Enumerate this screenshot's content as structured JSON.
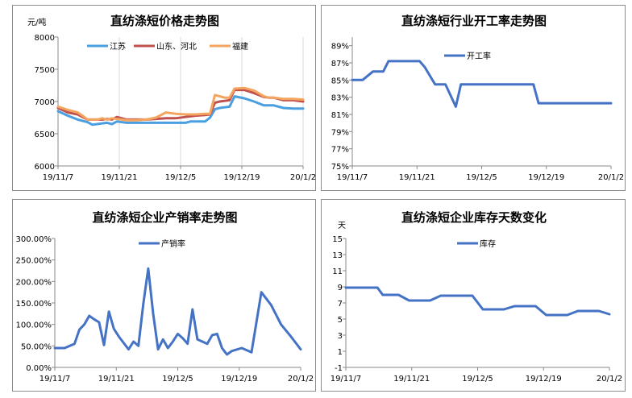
{
  "chart_data": [
    {
      "type": "line",
      "title": "直纺涤短价格走势图",
      "ylabel": "元/吨",
      "ylim": [
        6000,
        8000
      ],
      "yticks": [
        "8000",
        "7500",
        "7000",
        "6500",
        "6000"
      ],
      "xticks": [
        "19/11/7",
        "19/11/21",
        "19/12/5",
        "19/12/19",
        "20/1/2"
      ],
      "legend_position": "top",
      "series": [
        {
          "name": "江苏",
          "color": "#4a9fe0",
          "x": [
            0,
            2,
            4,
            5,
            6,
            7,
            8,
            9,
            10,
            11,
            12,
            14,
            16,
            18,
            20,
            22,
            24,
            26,
            27,
            28,
            30,
            31,
            32,
            33,
            34,
            35,
            36,
            38,
            40,
            42,
            43,
            44,
            46,
            48,
            50
          ],
          "y": [
            6850,
            6780,
            6720,
            6700,
            6680,
            6640,
            6650,
            6660,
            6670,
            6650,
            6690,
            6670,
            6670,
            6670,
            6670,
            6670,
            6670,
            6670,
            6690,
            6690,
            6690,
            6750,
            6880,
            6900,
            6910,
            6920,
            7080,
            7050,
            7000,
            6940,
            6940,
            6940,
            6900,
            6890,
            6890
          ]
        },
        {
          "name": "山东、河北",
          "color": "#c0504d",
          "x": [
            0,
            2,
            4,
            5,
            6,
            7,
            8,
            9,
            10,
            11,
            12,
            14,
            16,
            18,
            20,
            22,
            24,
            26,
            27,
            28,
            30,
            31,
            32,
            33,
            34,
            35,
            36,
            38,
            40,
            42,
            43,
            44,
            46,
            48,
            50
          ],
          "y": [
            6900,
            6830,
            6800,
            6760,
            6720,
            6720,
            6720,
            6720,
            6730,
            6720,
            6760,
            6720,
            6720,
            6720,
            6730,
            6740,
            6740,
            6760,
            6770,
            6780,
            6790,
            6800,
            6980,
            7000,
            7010,
            7020,
            7180,
            7180,
            7130,
            7070,
            7060,
            7060,
            7020,
            7020,
            7000
          ]
        },
        {
          "name": "福建",
          "color": "#f4a45e",
          "x": [
            0,
            2,
            4,
            5,
            6,
            7,
            8,
            9,
            10,
            11,
            12,
            14,
            16,
            18,
            20,
            22,
            24,
            26,
            27,
            28,
            30,
            31,
            32,
            33,
            34,
            35,
            36,
            38,
            40,
            42,
            43,
            44,
            46,
            48,
            50
          ],
          "y": [
            6920,
            6870,
            6830,
            6780,
            6720,
            6720,
            6720,
            6740,
            6720,
            6740,
            6730,
            6710,
            6710,
            6720,
            6750,
            6830,
            6810,
            6800,
            6800,
            6800,
            6810,
            6810,
            7100,
            7080,
            7060,
            7060,
            7200,
            7210,
            7170,
            7080,
            7060,
            7060,
            7040,
            7040,
            7030
          ]
        }
      ]
    },
    {
      "type": "line",
      "title": "直纺涤短行业开工率走势图",
      "ylim": [
        75,
        90
      ],
      "yticks": [
        "89%",
        "87%",
        "85%",
        "83%",
        "81%",
        "79%",
        "77%",
        "75%"
      ],
      "xticks": [
        "19/11/7",
        "19/11/21",
        "19/12/5",
        "19/12/19",
        "20/1/2"
      ],
      "legend_position": "top",
      "series": [
        {
          "name": "开工率",
          "color": "#4472c4",
          "x": [
            0,
            2,
            4,
            5,
            6,
            7,
            8,
            9,
            10,
            11,
            12,
            13,
            14,
            15,
            16,
            17,
            18,
            19,
            20,
            21,
            22,
            23,
            24,
            25,
            26,
            28,
            30,
            32,
            34,
            35,
            36,
            38,
            40,
            42,
            44,
            46,
            48,
            50
          ],
          "y": [
            85,
            85,
            86,
            86,
            86,
            87.2,
            87.2,
            87.2,
            87.2,
            87.2,
            87.2,
            87.2,
            86.5,
            85.5,
            84.5,
            84.5,
            84.5,
            83.2,
            81.9,
            84.5,
            84.5,
            84.5,
            84.5,
            84.5,
            84.5,
            84.5,
            84.5,
            84.5,
            84.5,
            84.5,
            82.3,
            82.3,
            82.3,
            82.3,
            82.3,
            82.3,
            82.3,
            82.3
          ]
        }
      ]
    },
    {
      "type": "line",
      "title": "直纺涤短企业产销率走势图",
      "ylim": [
        0,
        300
      ],
      "yticks": [
        "300.00%",
        "250.00%",
        "200.00%",
        "150.00%",
        "100.00%",
        "50.00%",
        "0.00%"
      ],
      "xticks": [
        "19/11/7",
        "19/11/21",
        "19/12/5",
        "19/12/19",
        "20/1/2"
      ],
      "legend_position": "top",
      "series": [
        {
          "name": "产销率",
          "color": "#4472c4",
          "x": [
            0,
            2,
            4,
            5,
            6,
            7,
            8,
            9,
            10,
            11,
            12,
            13,
            14,
            15,
            16,
            17,
            18,
            19,
            20,
            21,
            22,
            23,
            24,
            25,
            26,
            27,
            28,
            29,
            30,
            31,
            32,
            33,
            34,
            35,
            36,
            38,
            40,
            42,
            44,
            46,
            48,
            50
          ],
          "y": [
            45,
            45,
            55,
            88,
            100,
            120,
            112,
            105,
            52,
            130,
            90,
            72,
            57,
            42,
            60,
            50,
            148,
            230,
            125,
            42,
            65,
            45,
            60,
            78,
            68,
            55,
            135,
            65,
            60,
            55,
            75,
            78,
            45,
            30,
            38,
            45,
            35,
            175,
            145,
            100,
            72,
            42
          ]
        }
      ]
    },
    {
      "type": "line",
      "title": "直纺涤短企业库存天数变化",
      "ylabel": "天",
      "ylim": [
        0,
        15
      ],
      "yticks": [
        "15",
        "13",
        "11",
        "9",
        "7",
        "5",
        "3",
        "1",
        "-1"
      ],
      "xticks": [
        "19/11/7",
        "19/11/21",
        "19/12/5",
        "19/12/19",
        "20/1/2"
      ],
      "legend_position": "top",
      "series": [
        {
          "name": "库存",
          "color": "#4472c4",
          "x": [
            0,
            2,
            4,
            6,
            7,
            8,
            10,
            12,
            14,
            16,
            18,
            20,
            22,
            24,
            26,
            28,
            30,
            32,
            34,
            36,
            38,
            40,
            42,
            44,
            46,
            48,
            50
          ],
          "y": [
            8.9,
            8.9,
            8.9,
            8.9,
            8,
            8,
            8,
            7.3,
            7.3,
            7.3,
            7.9,
            7.9,
            7.9,
            7.9,
            6.2,
            6.2,
            6.2,
            6.6,
            6.6,
            6.6,
            5.5,
            5.5,
            5.5,
            6,
            6,
            6,
            5.6
          ]
        }
      ]
    }
  ]
}
